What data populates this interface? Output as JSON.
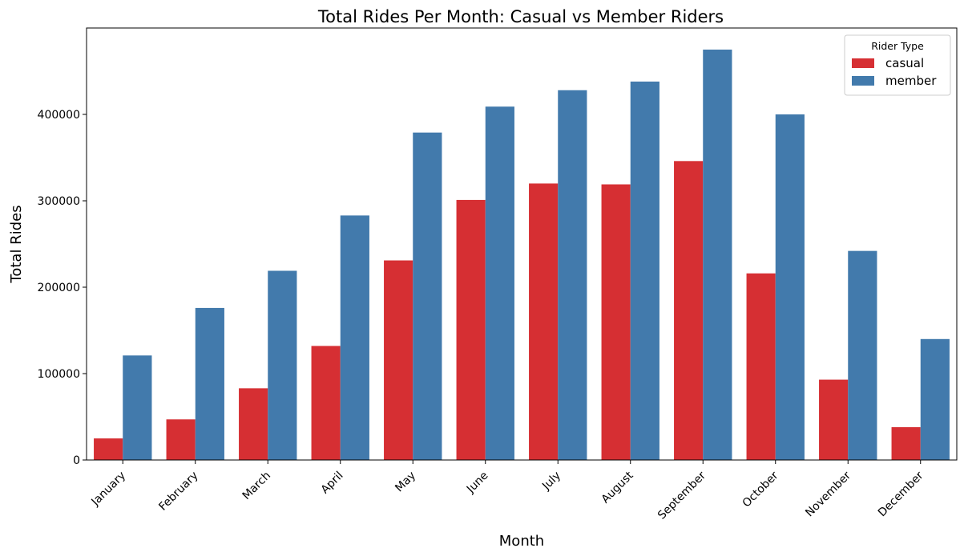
{
  "chart_data": {
    "type": "bar",
    "title": "Total Rides Per Month: Casual vs Member Riders",
    "xlabel": "Month",
    "ylabel": "Total Rides",
    "categories": [
      "January",
      "February",
      "March",
      "April",
      "May",
      "June",
      "July",
      "August",
      "September",
      "October",
      "November",
      "December"
    ],
    "series": [
      {
        "name": "casual",
        "color": "#d62f33",
        "values": [
          25000,
          47000,
          83000,
          132000,
          231000,
          301000,
          320000,
          319000,
          346000,
          216000,
          93000,
          38000
        ]
      },
      {
        "name": "member",
        "color": "#427aac",
        "values": [
          121000,
          176000,
          219000,
          283000,
          379000,
          409000,
          428000,
          438000,
          475000,
          400000,
          242000,
          140000
        ]
      }
    ],
    "ylim": [
      0,
      500000
    ],
    "yticks": [
      0,
      100000,
      200000,
      300000,
      400000
    ],
    "grid": false,
    "legend": {
      "title": "Rider Type",
      "placement": "top-right"
    }
  }
}
